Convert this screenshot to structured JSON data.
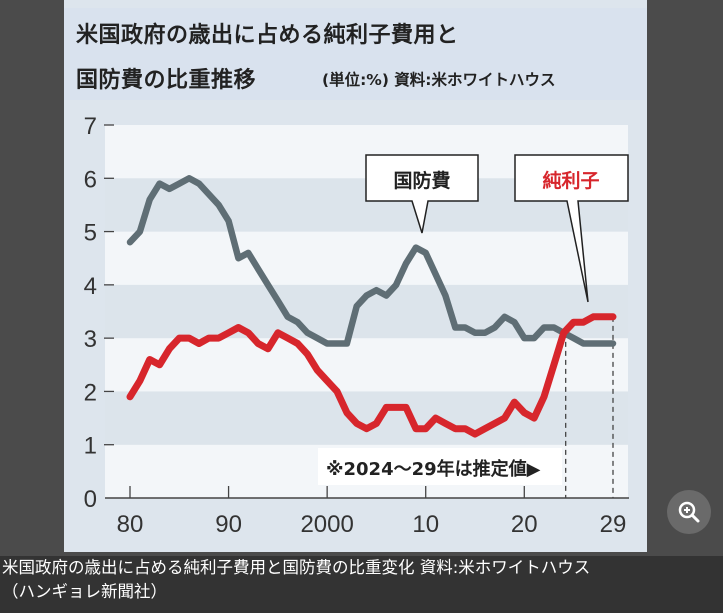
{
  "header": {
    "title_line1": "米国政府の歳出に占める純利子費用と",
    "title_line2": "国防費の比重推移",
    "subtitle": "(単位:%) 資料:米ホワイトハウス"
  },
  "caption": {
    "line1": "米国政府の歳出に占める純利子費用と国防費の比重変化 資料:米ホワイトハウス",
    "line2": "（ハンギョレ新聞社）"
  },
  "zoom_button": {
    "icon": "zoom-in-icon"
  },
  "chart_data": {
    "type": "line",
    "title": "米国政府の歳出に占める純利子費用と国防費の比重推移",
    "unit": "(単位:%)",
    "source": "資料:米ホワイトハウス",
    "xlabel": "",
    "ylabel": "",
    "xlim": [
      1980,
      2029
    ],
    "ylim": [
      0,
      7
    ],
    "x_ticks": [
      1980,
      1990,
      2000,
      2010,
      2020,
      2029
    ],
    "x_tick_labels": [
      "80",
      "90",
      "2000",
      "10",
      "20",
      "29"
    ],
    "y_ticks": [
      0,
      1,
      2,
      3,
      4,
      5,
      6,
      7
    ],
    "y_tick_labels": [
      "0",
      "1",
      "2",
      "3",
      "4",
      "5",
      "6",
      "7"
    ],
    "estimate_start": 2024,
    "annotation": "※2024～29年は推定値▶",
    "x": [
      1980,
      1981,
      1982,
      1983,
      1984,
      1985,
      1986,
      1987,
      1988,
      1989,
      1990,
      1991,
      1992,
      1993,
      1994,
      1995,
      1996,
      1997,
      1998,
      1999,
      2000,
      2001,
      2002,
      2003,
      2004,
      2005,
      2006,
      2007,
      2008,
      2009,
      2010,
      2011,
      2012,
      2013,
      2014,
      2015,
      2016,
      2017,
      2018,
      2019,
      2020,
      2021,
      2022,
      2023,
      2024,
      2025,
      2026,
      2027,
      2028,
      2029
    ],
    "series": [
      {
        "name": "国防費",
        "color": "#5f6e75",
        "label_color": "#222222",
        "values": [
          4.8,
          5.0,
          5.6,
          5.9,
          5.8,
          5.9,
          6.0,
          5.9,
          5.7,
          5.5,
          5.2,
          4.5,
          4.6,
          4.3,
          4.0,
          3.7,
          3.4,
          3.3,
          3.1,
          3.0,
          2.9,
          2.9,
          2.9,
          3.6,
          3.8,
          3.9,
          3.8,
          4.0,
          4.4,
          4.7,
          4.6,
          4.2,
          3.8,
          3.2,
          3.2,
          3.1,
          3.1,
          3.2,
          3.4,
          3.3,
          3.0,
          3.0,
          3.2,
          3.2,
          3.1,
          3.0,
          2.9,
          2.9,
          2.9,
          2.9
        ]
      },
      {
        "name": "純利子",
        "color": "#d7262c",
        "label_color": "#d7262c",
        "values": [
          1.9,
          2.2,
          2.6,
          2.5,
          2.8,
          3.0,
          3.0,
          2.9,
          3.0,
          3.0,
          3.1,
          3.2,
          3.1,
          2.9,
          2.8,
          3.1,
          3.0,
          2.9,
          2.7,
          2.4,
          2.2,
          2.0,
          1.6,
          1.4,
          1.3,
          1.4,
          1.7,
          1.7,
          1.7,
          1.3,
          1.3,
          1.5,
          1.4,
          1.3,
          1.3,
          1.2,
          1.3,
          1.4,
          1.5,
          1.8,
          1.6,
          1.5,
          1.9,
          2.5,
          3.1,
          3.3,
          3.3,
          3.4,
          3.4,
          3.4
        ]
      }
    ],
    "band_colors": [
      "#f3f6f9",
      "#dce4eb"
    ]
  }
}
